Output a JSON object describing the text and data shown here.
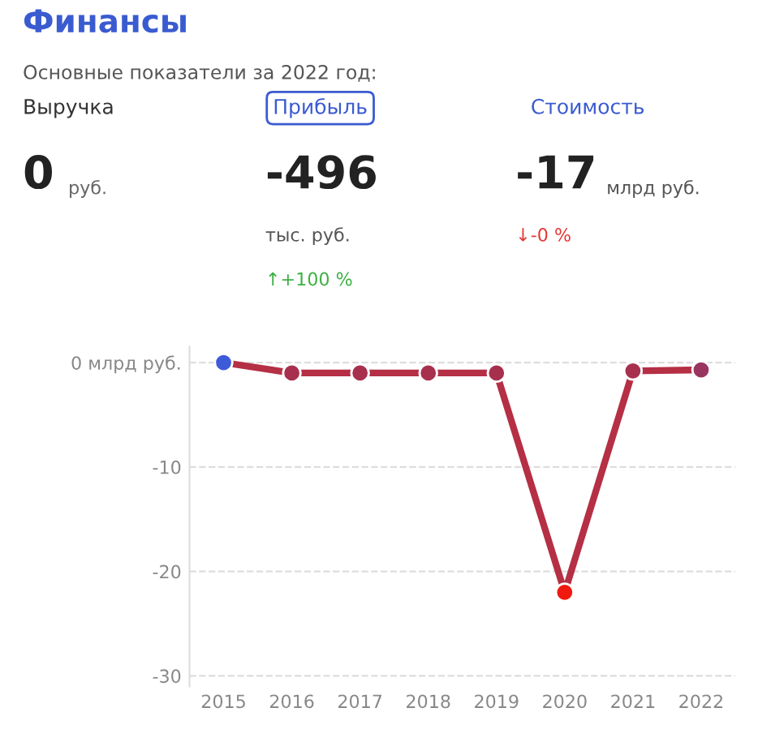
{
  "chart_data": [
    {
      "type": "other",
      "title": "Финансы",
      "subtitle": "Основные показатели за 2022 год:",
      "annotations": [
        "Выручка",
        "Прибыль",
        "Стоимость",
        "0",
        "руб.",
        "-496",
        "тыс. руб.",
        "↑+100 %",
        "-17",
        "млрд руб.",
        "↓-0 %"
      ]
    },
    {
      "type": "line",
      "categories": [
        "2015",
        "2016",
        "2017",
        "2018",
        "2019",
        "2020",
        "2021",
        "2022"
      ],
      "series": [
        {
          "color": "#b52f45",
          "colors": [
            "#3d5bd9",
            "#a8304f",
            "#a8304f",
            "#a8304f",
            "#a8304f",
            "#f0190f",
            "#a8304f",
            "#9a3560"
          ],
          "values": [
            0,
            -1.0,
            -1.0,
            -1.0,
            -1.0,
            -22,
            -0.8,
            -0.7
          ]
        }
      ],
      "ylim": [
        -31,
        1.5
      ],
      "yticks": [
        {
          "value": 0,
          "label": "0 млрд руб."
        },
        -10,
        -20,
        -30
      ],
      "grid": "y",
      "marker": "circle",
      "line_style": "solid"
    }
  ]
}
